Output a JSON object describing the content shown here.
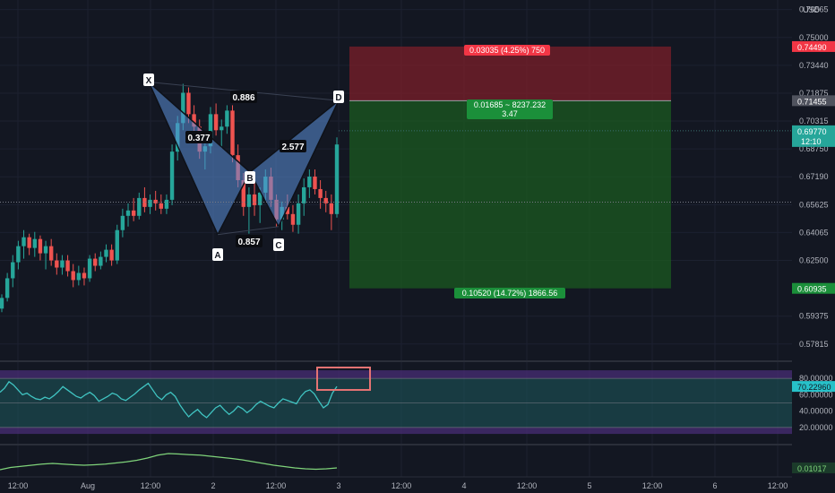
{
  "chart_data": {
    "type": "candlestick",
    "currency_label": "USD",
    "price_axis": {
      "ticks": [
        0.76565,
        0.75,
        0.7344,
        0.71875,
        0.70315,
        0.6875,
        0.6719,
        0.65625,
        0.64065,
        0.625,
        0.59375,
        0.57815
      ],
      "range": [
        0.569,
        0.771
      ]
    },
    "time_axis": {
      "labels": [
        "12:00",
        "Aug",
        "12:00",
        "2",
        "12:00",
        "3",
        "12:00",
        "4",
        "12:00",
        "5",
        "12:00",
        "6",
        "12:00"
      ]
    },
    "candles": [
      [
        0.598,
        0.606,
        0.596,
        0.604
      ],
      [
        0.604,
        0.618,
        0.602,
        0.615
      ],
      [
        0.615,
        0.628,
        0.61,
        0.624
      ],
      [
        0.624,
        0.636,
        0.62,
        0.633
      ],
      [
        0.633,
        0.642,
        0.626,
        0.638
      ],
      [
        0.638,
        0.64,
        0.628,
        0.632
      ],
      [
        0.632,
        0.641,
        0.627,
        0.637
      ],
      [
        0.637,
        0.639,
        0.625,
        0.629
      ],
      [
        0.629,
        0.636,
        0.62,
        0.633
      ],
      [
        0.633,
        0.637,
        0.622,
        0.625
      ],
      [
        0.625,
        0.629,
        0.617,
        0.621
      ],
      [
        0.621,
        0.628,
        0.617,
        0.625
      ],
      [
        0.625,
        0.628,
        0.616,
        0.619
      ],
      [
        0.619,
        0.623,
        0.61,
        0.614
      ],
      [
        0.614,
        0.622,
        0.611,
        0.618
      ],
      [
        0.618,
        0.621,
        0.611,
        0.615
      ],
      [
        0.615,
        0.628,
        0.613,
        0.626
      ],
      [
        0.626,
        0.629,
        0.619,
        0.622
      ],
      [
        0.622,
        0.63,
        0.62,
        0.627
      ],
      [
        0.627,
        0.634,
        0.624,
        0.631
      ],
      [
        0.631,
        0.634,
        0.622,
        0.625
      ],
      [
        0.625,
        0.645,
        0.623,
        0.642
      ],
      [
        0.642,
        0.654,
        0.638,
        0.65
      ],
      [
        0.65,
        0.657,
        0.644,
        0.653
      ],
      [
        0.653,
        0.66,
        0.647,
        0.65
      ],
      [
        0.65,
        0.663,
        0.648,
        0.66
      ],
      [
        0.66,
        0.666,
        0.652,
        0.655
      ],
      [
        0.655,
        0.662,
        0.651,
        0.659
      ],
      [
        0.659,
        0.664,
        0.653,
        0.657
      ],
      [
        0.657,
        0.662,
        0.651,
        0.654
      ],
      [
        0.654,
        0.662,
        0.651,
        0.659
      ],
      [
        0.659,
        0.69,
        0.656,
        0.686
      ],
      [
        0.686,
        0.706,
        0.681,
        0.702
      ],
      [
        0.702,
        0.724,
        0.698,
        0.719
      ],
      [
        0.719,
        0.722,
        0.702,
        0.707
      ],
      [
        0.707,
        0.712,
        0.696,
        0.7
      ],
      [
        0.7,
        0.704,
        0.682,
        0.686
      ],
      [
        0.686,
        0.694,
        0.676,
        0.689
      ],
      [
        0.689,
        0.711,
        0.685,
        0.707
      ],
      [
        0.707,
        0.713,
        0.695,
        0.698
      ],
      [
        0.698,
        0.704,
        0.688,
        0.7
      ],
      [
        0.7,
        0.712,
        0.696,
        0.709
      ],
      [
        0.709,
        0.712,
        0.68,
        0.684
      ],
      [
        0.684,
        0.69,
        0.666,
        0.67
      ],
      [
        0.67,
        0.674,
        0.65,
        0.655
      ],
      [
        0.655,
        0.666,
        0.64,
        0.662
      ],
      [
        0.662,
        0.67,
        0.65,
        0.656
      ],
      [
        0.656,
        0.666,
        0.646,
        0.663
      ],
      [
        0.663,
        0.676,
        0.658,
        0.672
      ],
      [
        0.672,
        0.677,
        0.655,
        0.659
      ],
      [
        0.659,
        0.662,
        0.644,
        0.648
      ],
      [
        0.648,
        0.658,
        0.642,
        0.655
      ],
      [
        0.655,
        0.662,
        0.648,
        0.651
      ],
      [
        0.651,
        0.656,
        0.641,
        0.645
      ],
      [
        0.645,
        0.662,
        0.64,
        0.657
      ],
      [
        0.657,
        0.671,
        0.65,
        0.666
      ],
      [
        0.666,
        0.676,
        0.66,
        0.672
      ],
      [
        0.672,
        0.676,
        0.662,
        0.665
      ],
      [
        0.665,
        0.67,
        0.654,
        0.66
      ],
      [
        0.66,
        0.664,
        0.652,
        0.657
      ],
      [
        0.657,
        0.662,
        0.642,
        0.651
      ],
      [
        0.651,
        0.694,
        0.649,
        0.69
      ]
    ],
    "pattern": {
      "points": [
        {
          "label": "X",
          "value": 0.725
        },
        {
          "label": "A",
          "value": 0.6395
        },
        {
          "label": "B",
          "value": 0.6745
        },
        {
          "label": "C",
          "value": 0.644
        },
        {
          "label": "D",
          "value": 0.7146
        }
      ],
      "ratios": [
        "0.377",
        "0.857",
        "2.577",
        "0.886"
      ]
    },
    "position": {
      "entry": 0.71455,
      "stop": 0.7449,
      "target": 0.60935,
      "stop_label": "0.03035 (4.25%) 750",
      "entry_label": "0.01685 ~ 8237.232",
      "entry_ratio": "3.47",
      "target_label": "0.10520 (14.72%) 1866.56"
    },
    "price_labels": {
      "stop": "0.74490",
      "entry": "0.71455",
      "current": "0.69770",
      "countdown": "12:10",
      "target": "0.60935"
    },
    "rsi": {
      "ticks": [
        "80.00000",
        "60.00000",
        "40.00000",
        "20.00000"
      ],
      "value_label": "70.22960",
      "values": [
        63,
        68,
        76,
        72,
        66,
        60,
        62,
        58,
        55,
        54,
        57,
        55,
        59,
        64,
        70,
        66,
        62,
        58,
        56,
        60,
        63,
        59,
        52,
        55,
        58,
        62,
        60,
        55,
        53,
        57,
        61,
        66,
        70,
        74,
        66,
        58,
        54,
        60,
        63,
        58,
        48,
        40,
        33,
        38,
        42,
        36,
        32,
        38,
        44,
        47,
        41,
        36,
        40,
        46,
        43,
        38,
        42,
        48,
        52,
        49,
        46,
        44,
        50,
        55,
        53,
        51,
        49,
        58,
        64,
        66,
        61,
        52,
        44,
        48,
        62,
        70.2
      ]
    },
    "lower_indicator": {
      "value_label": "0.01017",
      "values": [
        0.3,
        0.4,
        0.45,
        0.5,
        0.55,
        0.58,
        0.55,
        0.52,
        0.5,
        0.52,
        0.55,
        0.6,
        0.65,
        0.72,
        0.82,
        0.95,
        1.02,
        1.0,
        0.97,
        0.95,
        0.9,
        0.85,
        0.8,
        0.74,
        0.66,
        0.58,
        0.5,
        0.44,
        0.38,
        0.34,
        0.32,
        0.34,
        0.38
      ]
    },
    "colors": {
      "up": "#26a69a",
      "down": "#ef5350",
      "pattern": "#5b8fd8",
      "rsi_line": "#40c4c2",
      "lower_line": "#7fd37a",
      "stop_zone": "#7b1f2a",
      "target_zone": "#1b5e20",
      "highlight_box": "#e57373"
    }
  }
}
